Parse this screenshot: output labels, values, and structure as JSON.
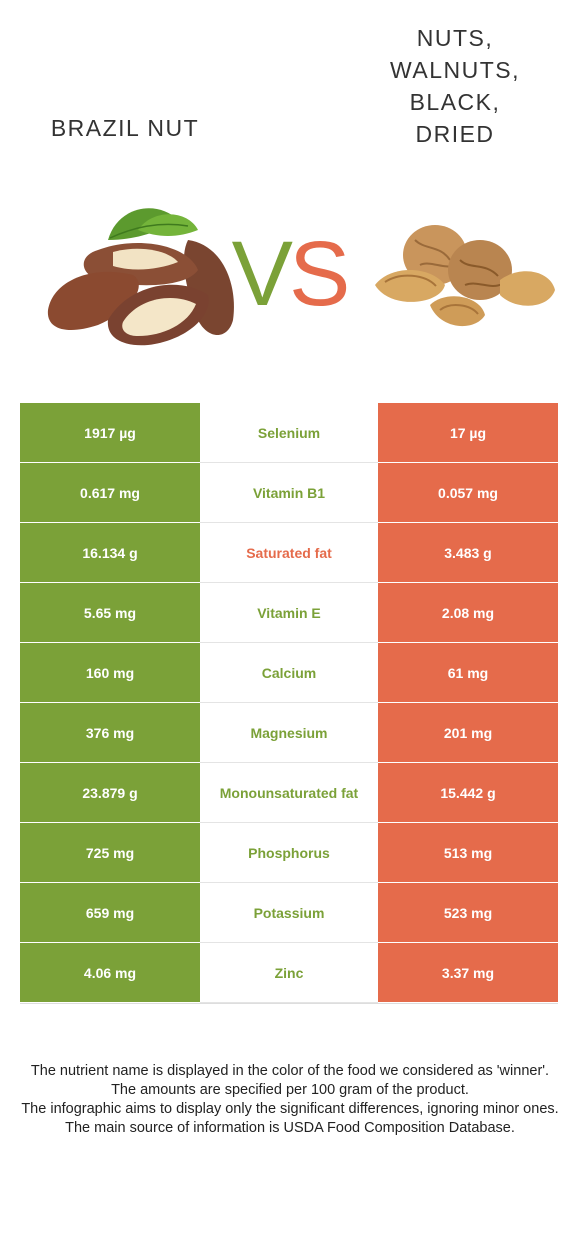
{
  "header": {
    "left_food": "Brazil nut",
    "right_food": "Nuts, walnuts, black, dried",
    "vs_v": "V",
    "vs_s": "S"
  },
  "colors": {
    "left": "#7ba138",
    "right": "#e56b4b"
  },
  "rows": [
    {
      "left": "1917 µg",
      "nutrient": "Selenium",
      "right": "17 µg",
      "winner": "left"
    },
    {
      "left": "0.617 mg",
      "nutrient": "Vitamin B1",
      "right": "0.057 mg",
      "winner": "left"
    },
    {
      "left": "16.134 g",
      "nutrient": "Saturated fat",
      "right": "3.483 g",
      "winner": "right"
    },
    {
      "left": "5.65 mg",
      "nutrient": "Vitamin E",
      "right": "2.08 mg",
      "winner": "left"
    },
    {
      "left": "160 mg",
      "nutrient": "Calcium",
      "right": "61 mg",
      "winner": "left"
    },
    {
      "left": "376 mg",
      "nutrient": "Magnesium",
      "right": "201 mg",
      "winner": "left"
    },
    {
      "left": "23.879 g",
      "nutrient": "Monounsaturated fat",
      "right": "15.442 g",
      "winner": "left"
    },
    {
      "left": "725 mg",
      "nutrient": "Phosphorus",
      "right": "513 mg",
      "winner": "left"
    },
    {
      "left": "659 mg",
      "nutrient": "Potassium",
      "right": "523 mg",
      "winner": "left"
    },
    {
      "left": "4.06 mg",
      "nutrient": "Zinc",
      "right": "3.37 mg",
      "winner": "left"
    }
  ],
  "notes": [
    "The nutrient name is displayed in the color of the food we considered as 'winner'.",
    "The amounts are specified per 100 gram of the product.",
    "The infographic aims to display only the significant differences, ignoring minor ones.",
    "The main source of information is USDA Food Composition Database."
  ]
}
